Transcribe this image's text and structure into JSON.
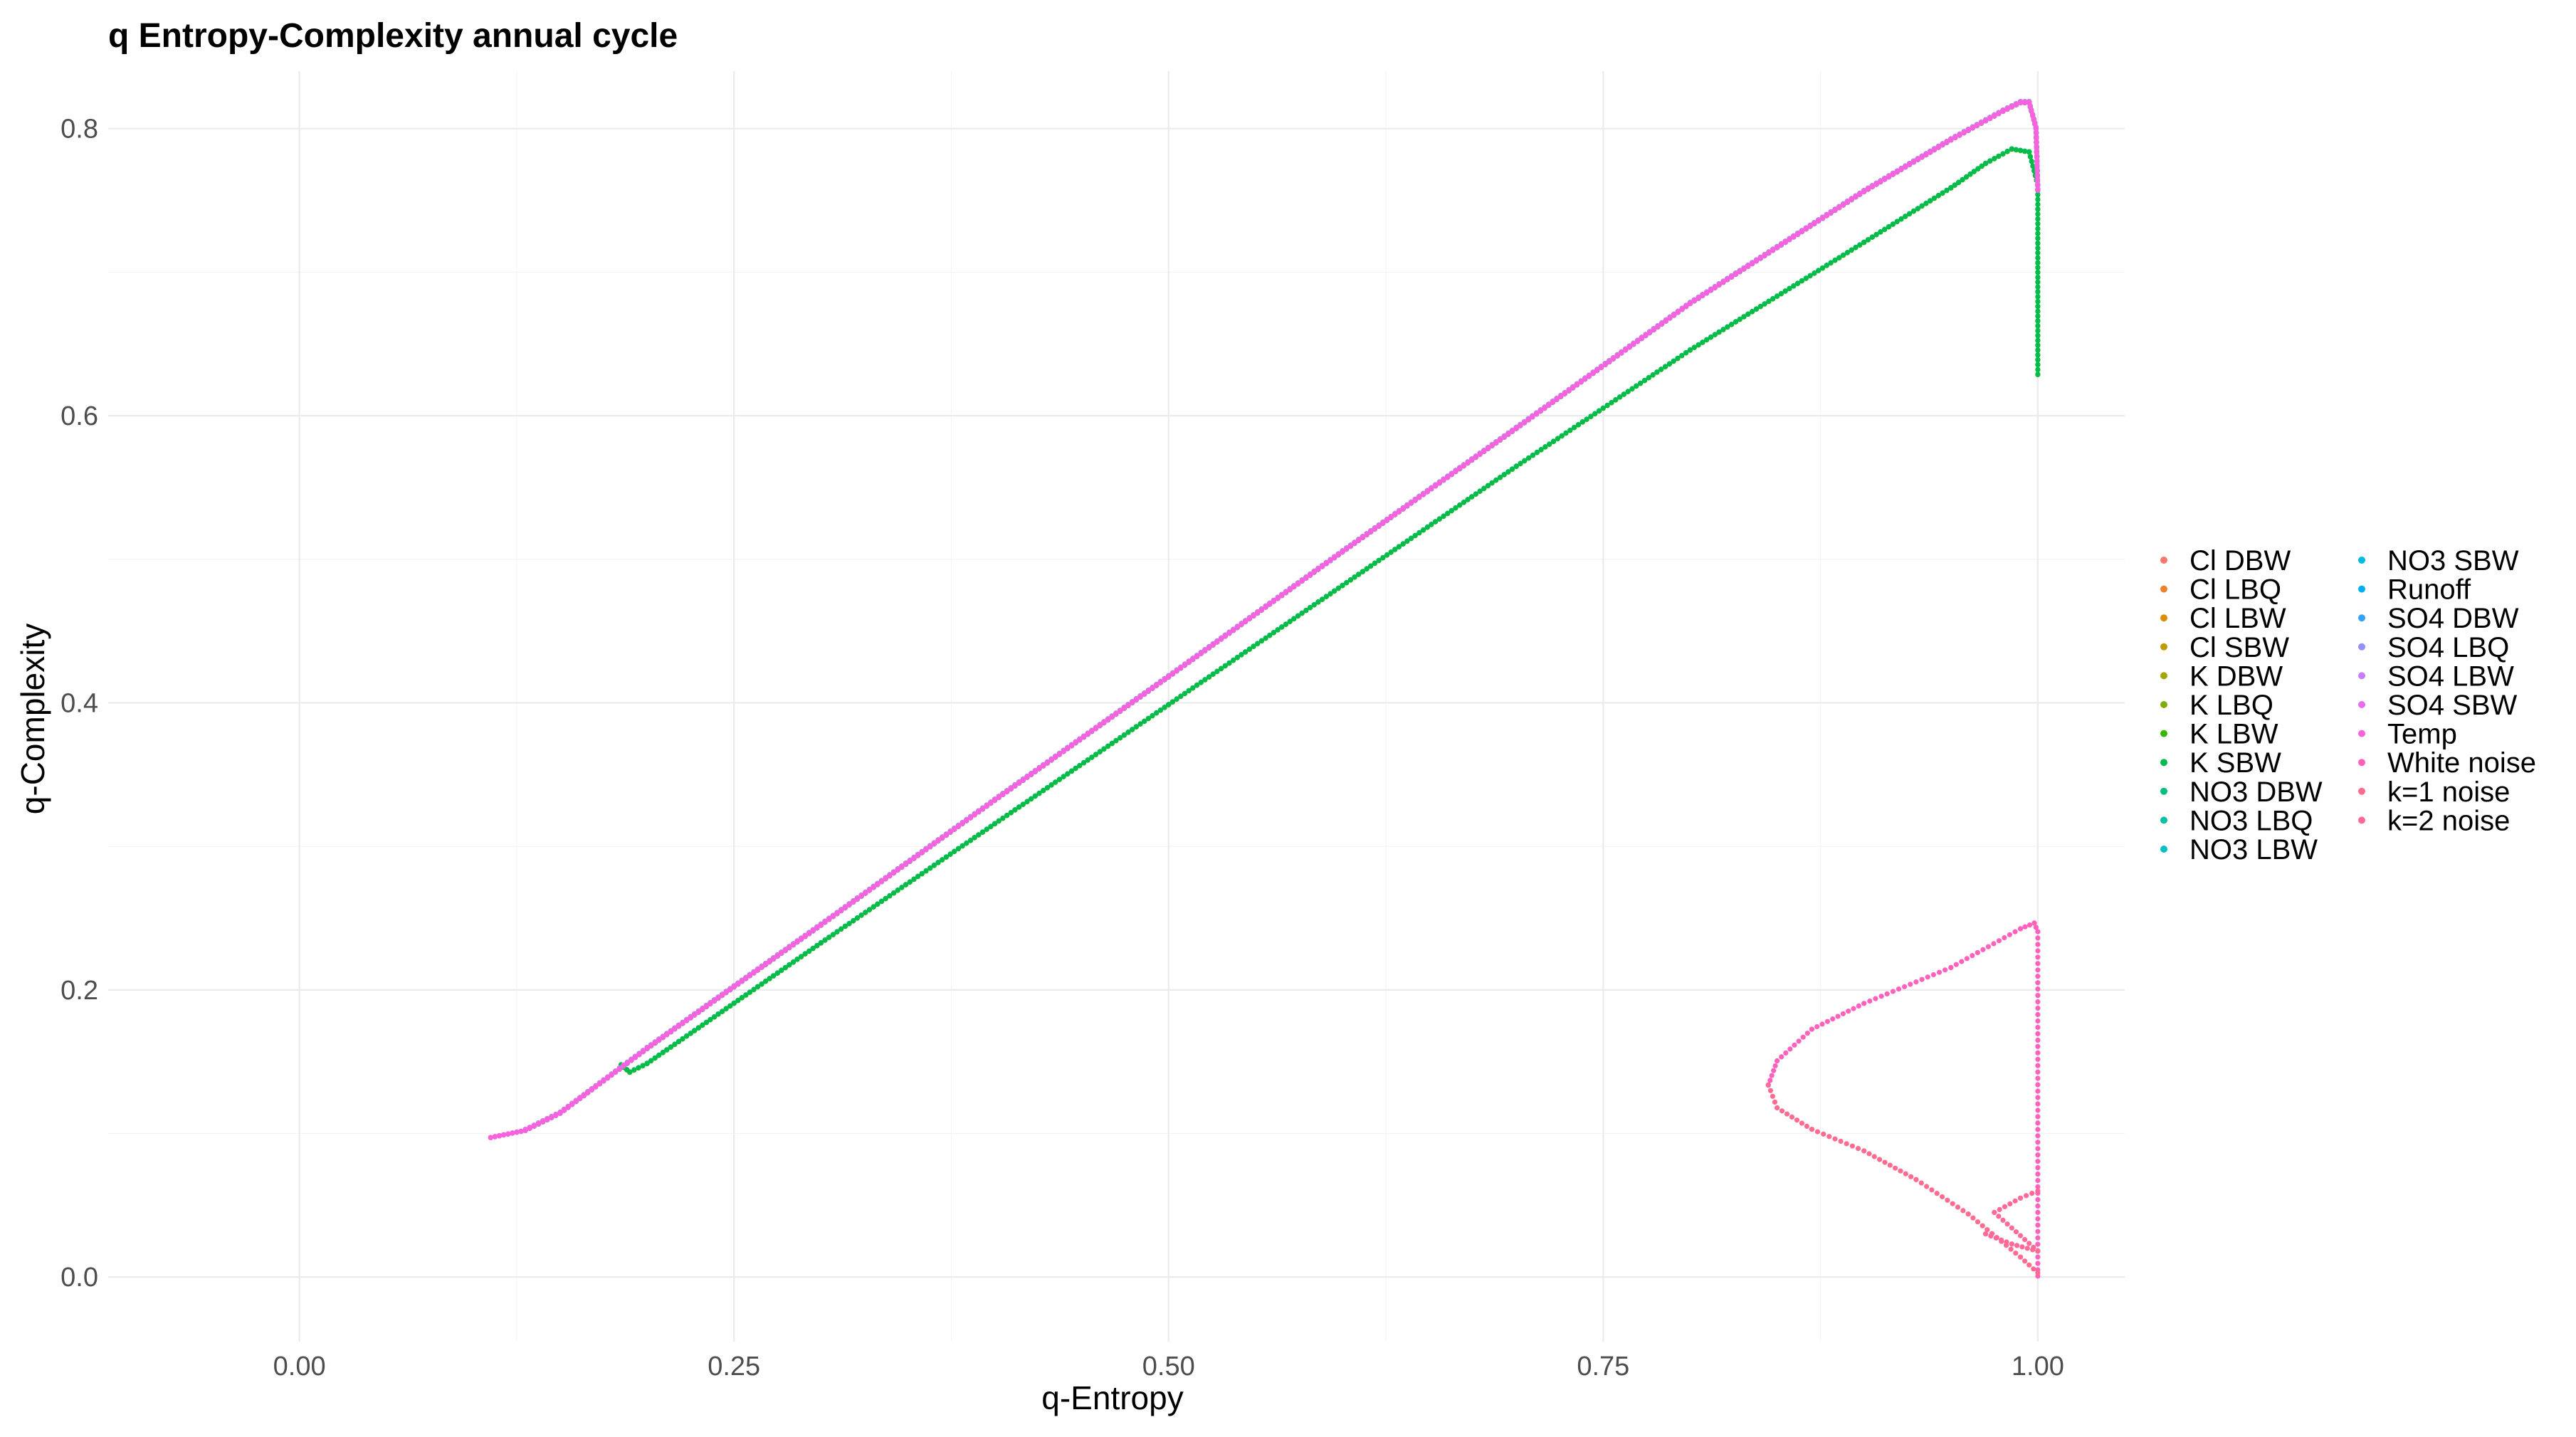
{
  "chart_data": {
    "type": "scatter",
    "title": "q Entropy-Complexity annual cycle",
    "xlabel": "q-Entropy",
    "ylabel": "q-Complexity",
    "xlim": [
      -0.11,
      1.05
    ],
    "ylim": [
      -0.045,
      0.84
    ],
    "x_ticks": [
      0.0,
      0.25,
      0.5,
      0.75,
      1.0
    ],
    "x_tick_labels": [
      "0.00",
      "0.25",
      "0.50",
      "0.75",
      "1.00"
    ],
    "y_ticks": [
      0.0,
      0.2,
      0.4,
      0.6,
      0.8
    ],
    "y_tick_labels": [
      "0.0",
      "0.2",
      "0.4",
      "0.6",
      "0.8"
    ],
    "grid": true,
    "legend_position": "right",
    "legend_columns": 2,
    "series": [
      {
        "name": "Cl DBW",
        "color": "#F8766D",
        "curve": "upper",
        "x_start": 0.137,
        "y_start": 0.115
      },
      {
        "name": "Cl LBQ",
        "color": "#EA8331",
        "curve": "upper",
        "x_start": 0.137,
        "y_start": 0.115
      },
      {
        "name": "Cl LBW",
        "color": "#D89000",
        "curve": "upper",
        "x_start": 0.137,
        "y_start": 0.115
      },
      {
        "name": "Cl SBW",
        "color": "#C09B00",
        "curve": "upper",
        "x_start": 0.137,
        "y_start": 0.115
      },
      {
        "name": "K DBW",
        "color": "#A3A500",
        "curve": "upper",
        "x_start": 0.186,
        "y_start": 0.15
      },
      {
        "name": "K LBQ",
        "color": "#7CAE00",
        "curve": "upper",
        "x_start": 0.186,
        "y_start": 0.15
      },
      {
        "name": "K LBW",
        "color": "#39B600",
        "curve": "lower",
        "x_start": 0.185,
        "y_start": 0.147
      },
      {
        "name": "K SBW",
        "color": "#00BB4E",
        "curve": "lower",
        "x_start": 0.185,
        "y_start": 0.147
      },
      {
        "name": "NO3 DBW",
        "color": "#00BF7D",
        "curve": "upper",
        "x_start": 0.186,
        "y_start": 0.15
      },
      {
        "name": "NO3 LBQ",
        "color": "#00C1A3",
        "curve": "upper",
        "x_start": 0.186,
        "y_start": 0.15
      },
      {
        "name": "NO3 LBW",
        "color": "#00BFC4",
        "curve": "upper",
        "x_start": 0.186,
        "y_start": 0.15
      },
      {
        "name": "NO3 SBW",
        "color": "#00BAE0",
        "curve": "upper",
        "x_start": 0.186,
        "y_start": 0.15
      },
      {
        "name": "Runoff",
        "color": "#00B0F6",
        "curve": "upper",
        "x_start": 0.125,
        "y_start": 0.11
      },
      {
        "name": "SO4 DBW",
        "color": "#35A2FF",
        "curve": "upper",
        "x_start": 0.13,
        "y_start": 0.108
      },
      {
        "name": "SO4 LBQ",
        "color": "#9590FF",
        "curve": "upper",
        "x_start": 0.13,
        "y_start": 0.108
      },
      {
        "name": "SO4 LBW",
        "color": "#C77CFF",
        "curve": "upper",
        "x_start": 0.13,
        "y_start": 0.108
      },
      {
        "name": "SO4 SBW",
        "color": "#E76BF3",
        "curve": "upper",
        "x_start": 0.11,
        "y_start": 0.097
      },
      {
        "name": "Temp",
        "color": "#FA62DB",
        "curve": "upper",
        "x_start": 0.11,
        "y_start": 0.097
      },
      {
        "name": "White noise",
        "color": "#FF62BC",
        "curve": "noise-upper",
        "x_start": 0.845,
        "y_start": 0.133
      },
      {
        "name": "k=1 noise",
        "color": "#FF6C91",
        "curve": "noise-lower",
        "x_start": 0.845,
        "y_start": 0.133
      },
      {
        "name": "k=2 noise",
        "color": "#FF6A98",
        "curve": "noise-inner",
        "x_start": 0.97,
        "y_start": 0.03
      }
    ],
    "curves": {
      "upper": [
        [
          0.11,
          0.097
        ],
        [
          0.13,
          0.102
        ],
        [
          0.15,
          0.114
        ],
        [
          0.2,
          0.159
        ],
        [
          0.25,
          0.202
        ],
        [
          0.3,
          0.245
        ],
        [
          0.4,
          0.332
        ],
        [
          0.5,
          0.418
        ],
        [
          0.6,
          0.505
        ],
        [
          0.7,
          0.591
        ],
        [
          0.8,
          0.678
        ],
        [
          0.9,
          0.756
        ],
        [
          0.95,
          0.792
        ],
        [
          0.98,
          0.812
        ],
        [
          0.99,
          0.818
        ],
        [
          0.995,
          0.818
        ],
        [
          0.999,
          0.8
        ],
        [
          1.0,
          0.757
        ]
      ],
      "lower": [
        [
          0.185,
          0.147
        ],
        [
          0.19,
          0.142
        ],
        [
          0.2,
          0.148
        ],
        [
          0.25,
          0.19
        ],
        [
          0.3,
          0.232
        ],
        [
          0.4,
          0.315
        ],
        [
          0.5,
          0.398
        ],
        [
          0.6,
          0.481
        ],
        [
          0.7,
          0.564
        ],
        [
          0.8,
          0.645
        ],
        [
          0.9,
          0.72
        ],
        [
          0.95,
          0.758
        ],
        [
          0.97,
          0.775
        ],
        [
          0.985,
          0.785
        ],
        [
          0.995,
          0.783
        ],
        [
          1.0,
          0.76
        ],
        [
          1.0,
          0.628
        ]
      ],
      "noise-upper": [
        [
          0.845,
          0.133
        ],
        [
          0.85,
          0.15
        ],
        [
          0.87,
          0.172
        ],
        [
          0.9,
          0.19
        ],
        [
          0.95,
          0.215
        ],
        [
          0.99,
          0.242
        ],
        [
          0.998,
          0.246
        ],
        [
          1.0,
          0.24
        ],
        [
          1.0,
          0.0
        ]
      ],
      "noise-lower": [
        [
          0.845,
          0.133
        ],
        [
          0.85,
          0.117
        ],
        [
          0.87,
          0.102
        ],
        [
          0.9,
          0.087
        ],
        [
          0.93,
          0.067
        ],
        [
          0.96,
          0.043
        ],
        [
          0.99,
          0.013
        ],
        [
          1.0,
          0.002
        ]
      ],
      "noise-inner": [
        [
          0.965,
          0.048
        ],
        [
          0.97,
          0.03
        ],
        [
          0.985,
          0.023
        ],
        [
          1.0,
          0.018
        ],
        [
          0.975,
          0.045
        ],
        [
          0.99,
          0.055
        ],
        [
          1.0,
          0.06
        ]
      ]
    }
  }
}
